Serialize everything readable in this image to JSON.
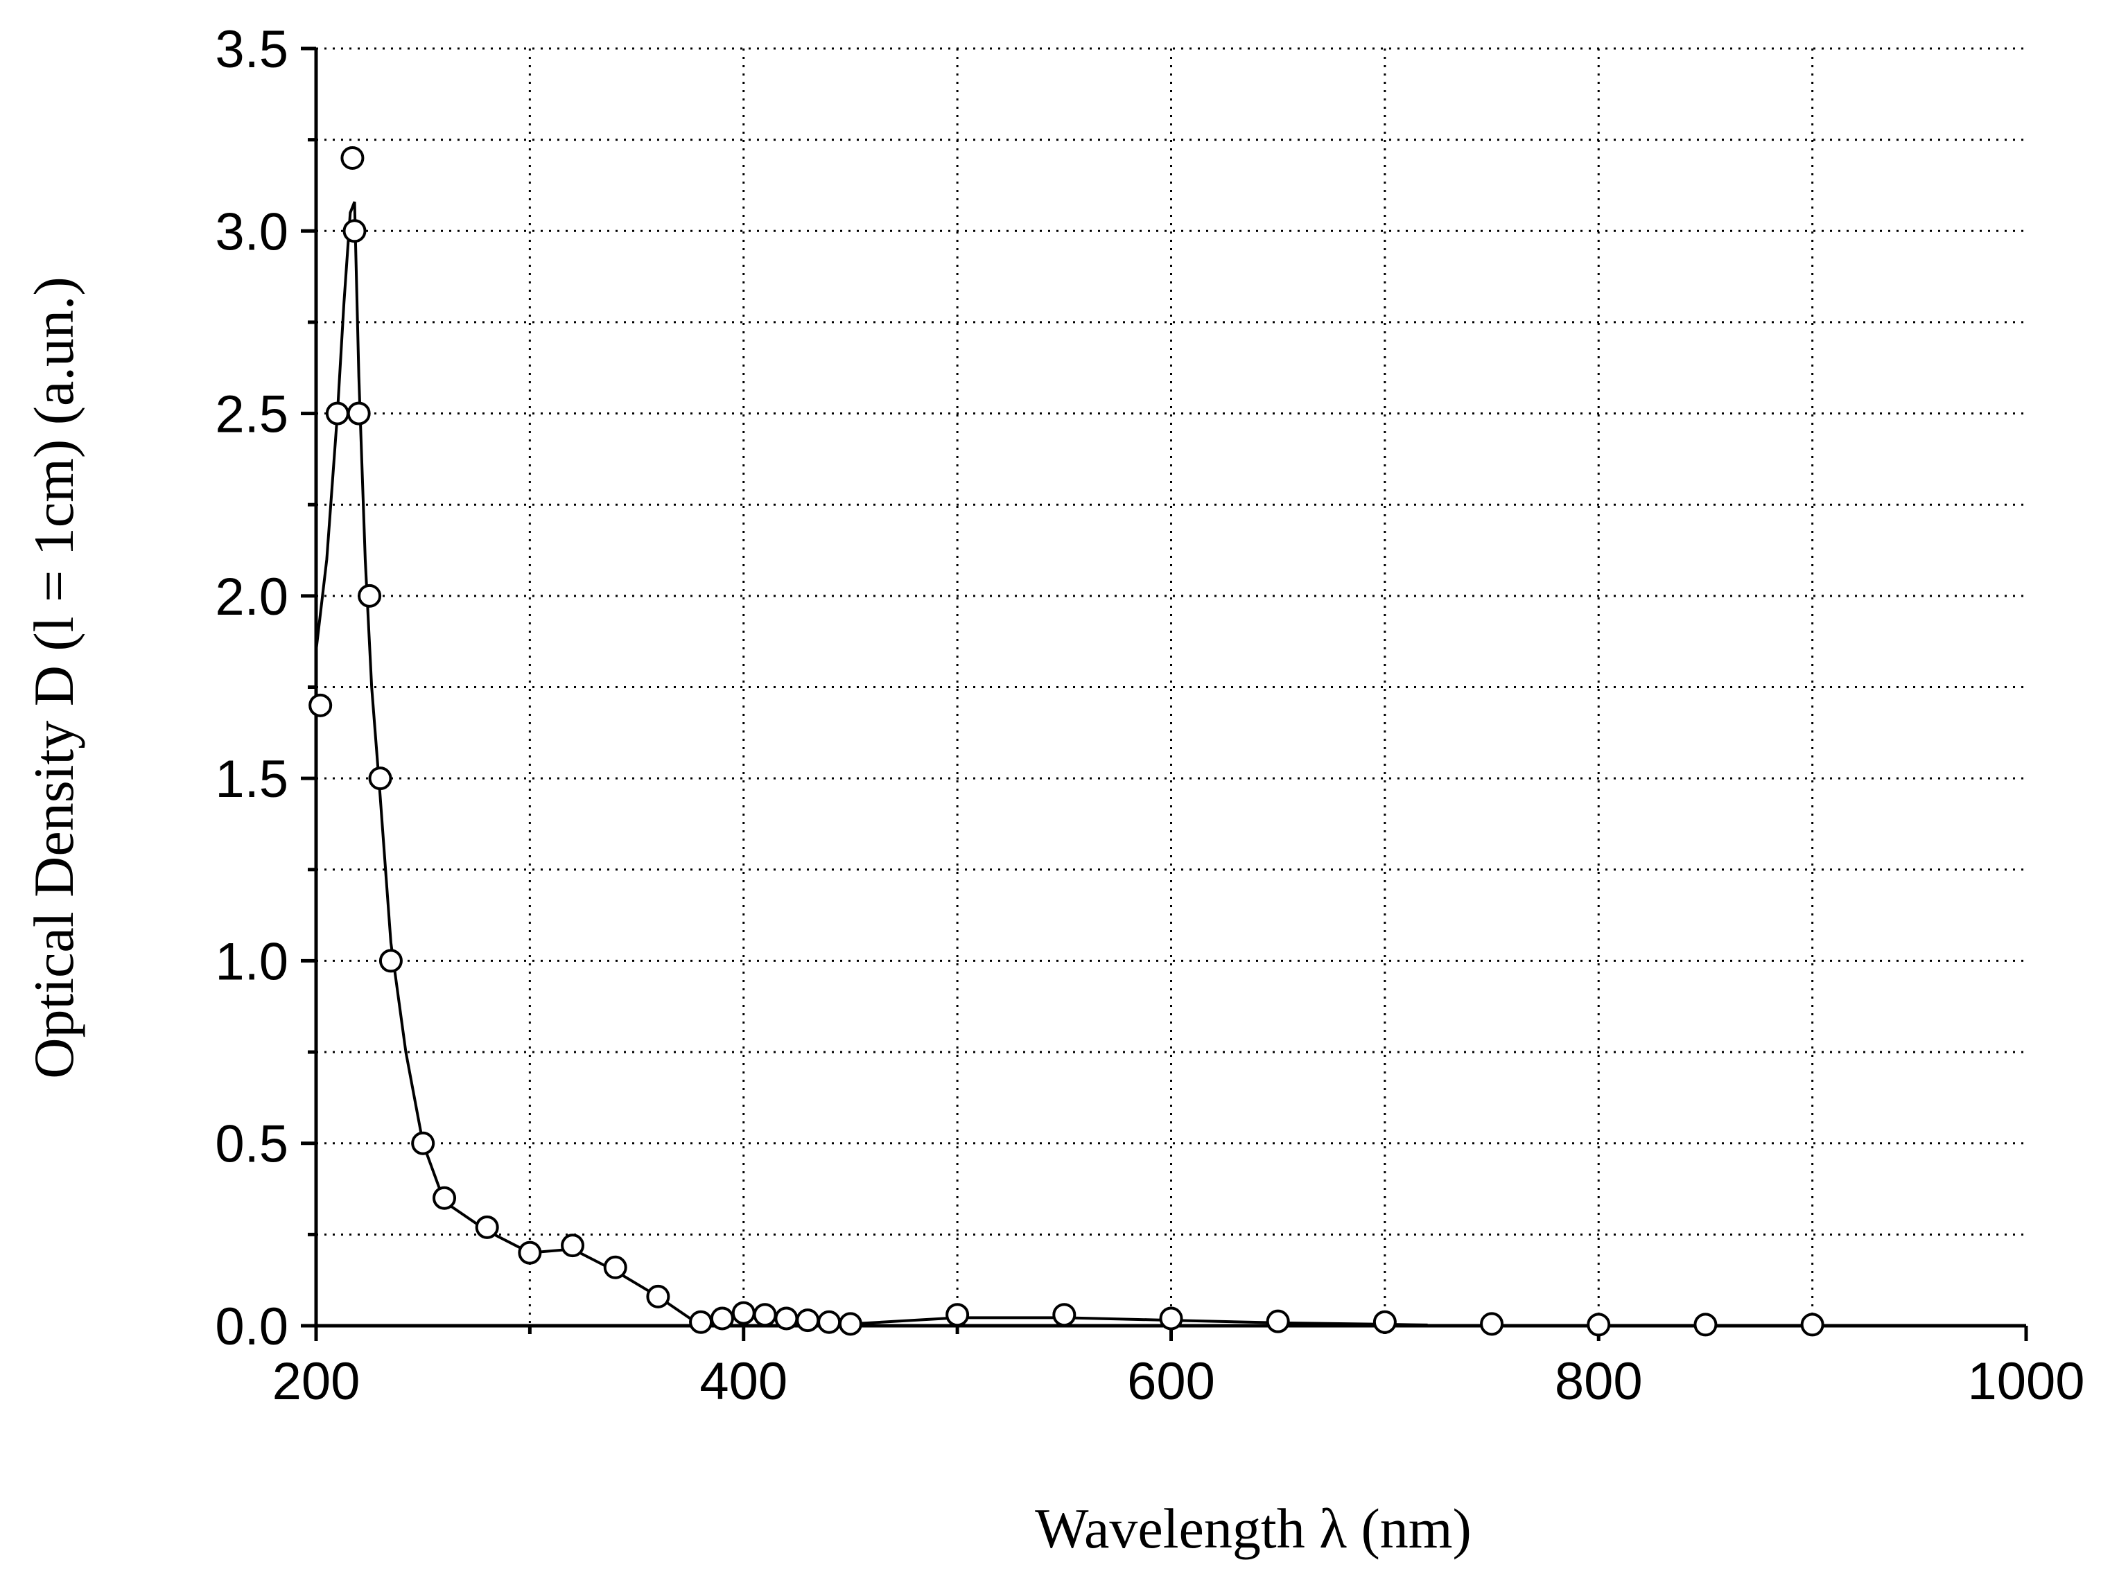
{
  "chart_data": {
    "type": "scatter",
    "title": "",
    "xlabel": "Wavelength λ (nm)",
    "ylabel": "Optical Density D (l = 1cm) (a.un.)",
    "xlim": [
      200,
      1000
    ],
    "ylim": [
      0,
      3.5
    ],
    "grid": true,
    "x_ticks": [
      200,
      400,
      600,
      800,
      1000
    ],
    "x_tick_labels": [
      "200",
      "400",
      "600",
      "800",
      "1000"
    ],
    "y_ticks": [
      0,
      0.5,
      1.0,
      1.5,
      2.0,
      2.5,
      3.0,
      3.5
    ],
    "y_tick_labels": [
      "0.0",
      "0.5",
      "1.0",
      "1.5",
      "2.0",
      "2.5",
      "3.0",
      "3.5"
    ],
    "series": [
      {
        "marker": "open-circle",
        "line": "solid",
        "color": "#000000",
        "x": [
          202,
          210,
          217,
          218,
          220,
          225,
          230,
          235,
          250,
          260,
          280,
          300,
          320,
          340,
          360,
          380,
          390,
          400,
          410,
          420,
          430,
          440,
          450,
          500,
          550,
          600,
          650,
          700,
          750,
          800,
          850,
          900
        ],
        "y": [
          1.7,
          2.5,
          3.2,
          3.0,
          2.5,
          2.0,
          1.5,
          1.0,
          0.5,
          0.35,
          0.27,
          0.2,
          0.22,
          0.16,
          0.08,
          0.01,
          0.02,
          0.035,
          0.03,
          0.02,
          0.015,
          0.01,
          0.005,
          0.03,
          0.03,
          0.02,
          0.012,
          0.01,
          0.005,
          0.003,
          0.003,
          0.003
        ],
        "curve_x": [
          200,
          205,
          210,
          213,
          216,
          218,
          220,
          223,
          226,
          230,
          235,
          242,
          250,
          260,
          280,
          300,
          320,
          340,
          360,
          375,
          390,
          400,
          410,
          430,
          450,
          500,
          550,
          600,
          650,
          700,
          720
        ],
        "curve_y": [
          1.85,
          2.1,
          2.5,
          2.8,
          3.05,
          3.08,
          2.6,
          2.1,
          1.75,
          1.45,
          1.05,
          0.75,
          0.5,
          0.34,
          0.26,
          0.2,
          0.21,
          0.15,
          0.08,
          0.02,
          0.02,
          0.03,
          0.025,
          0.012,
          0.005,
          0.022,
          0.022,
          0.015,
          0.008,
          0.004,
          0.002
        ]
      }
    ]
  }
}
